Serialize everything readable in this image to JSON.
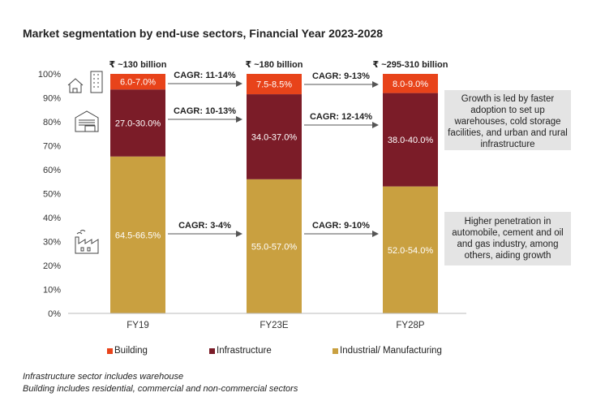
{
  "title": "Market segmentation by end-use sectors, Financial Year 2023-2028",
  "chart_data": {
    "type": "bar",
    "stacked": true,
    "categories": [
      "FY19",
      "FY23E",
      "FY28P"
    ],
    "series": [
      {
        "name": "Industrial/ Manufacturing",
        "color": "#C9A040",
        "values": [
          65.5,
          56.0,
          53.0
        ],
        "labels": [
          "64.5-66.5%",
          "55.0-57.0%",
          "52.0-54.0%"
        ]
      },
      {
        "name": "Infrastructure",
        "color": "#7B1C28",
        "values": [
          28.0,
          35.5,
          39.0
        ],
        "labels": [
          "27.0-30.0%",
          "34.0-37.0%",
          "38.0-40.0%"
        ]
      },
      {
        "name": "Building",
        "color": "#E8431A",
        "values": [
          6.5,
          8.5,
          8.0
        ],
        "labels": [
          "6.0-7.0%",
          "7.5-8.5%",
          "8.0-9.0%"
        ]
      }
    ],
    "totals": [
      "₹ ~130 billion",
      "₹ ~180 billion",
      "₹ ~295-310 billion"
    ],
    "ylim": [
      0,
      100
    ],
    "yticks": [
      "0%",
      "10%",
      "20%",
      "30%",
      "40%",
      "50%",
      "60%",
      "70%",
      "80%",
      "90%",
      "100%"
    ],
    "cagr": [
      {
        "segment": "Building",
        "labels": [
          "CAGR: 11-14%",
          "CAGR: 9-13%"
        ]
      },
      {
        "segment": "Infrastructure",
        "labels": [
          "CAGR: 10-13%",
          "CAGR: 12-14%"
        ]
      },
      {
        "segment": "Industrial/ Manufacturing",
        "labels": [
          "CAGR: 3-4%",
          "CAGR: 9-10%"
        ]
      }
    ],
    "legend": [
      "Building",
      "Infrastructure",
      "Industrial/ Manufacturing"
    ]
  },
  "notes": {
    "top": "Growth is led by faster adoption to set up warehouses, cold storage facilities, and urban and rural infrastructure",
    "bottom": "Higher penetration in automobile, cement and oil and gas industry, among others, aiding growth"
  },
  "footnotes": [
    "Infrastructure sector includes warehouse",
    "Building includes residential, commercial and non-commercial sectors"
  ],
  "icons": [
    "house-building-icon",
    "warehouse-icon",
    "factory-icon"
  ]
}
